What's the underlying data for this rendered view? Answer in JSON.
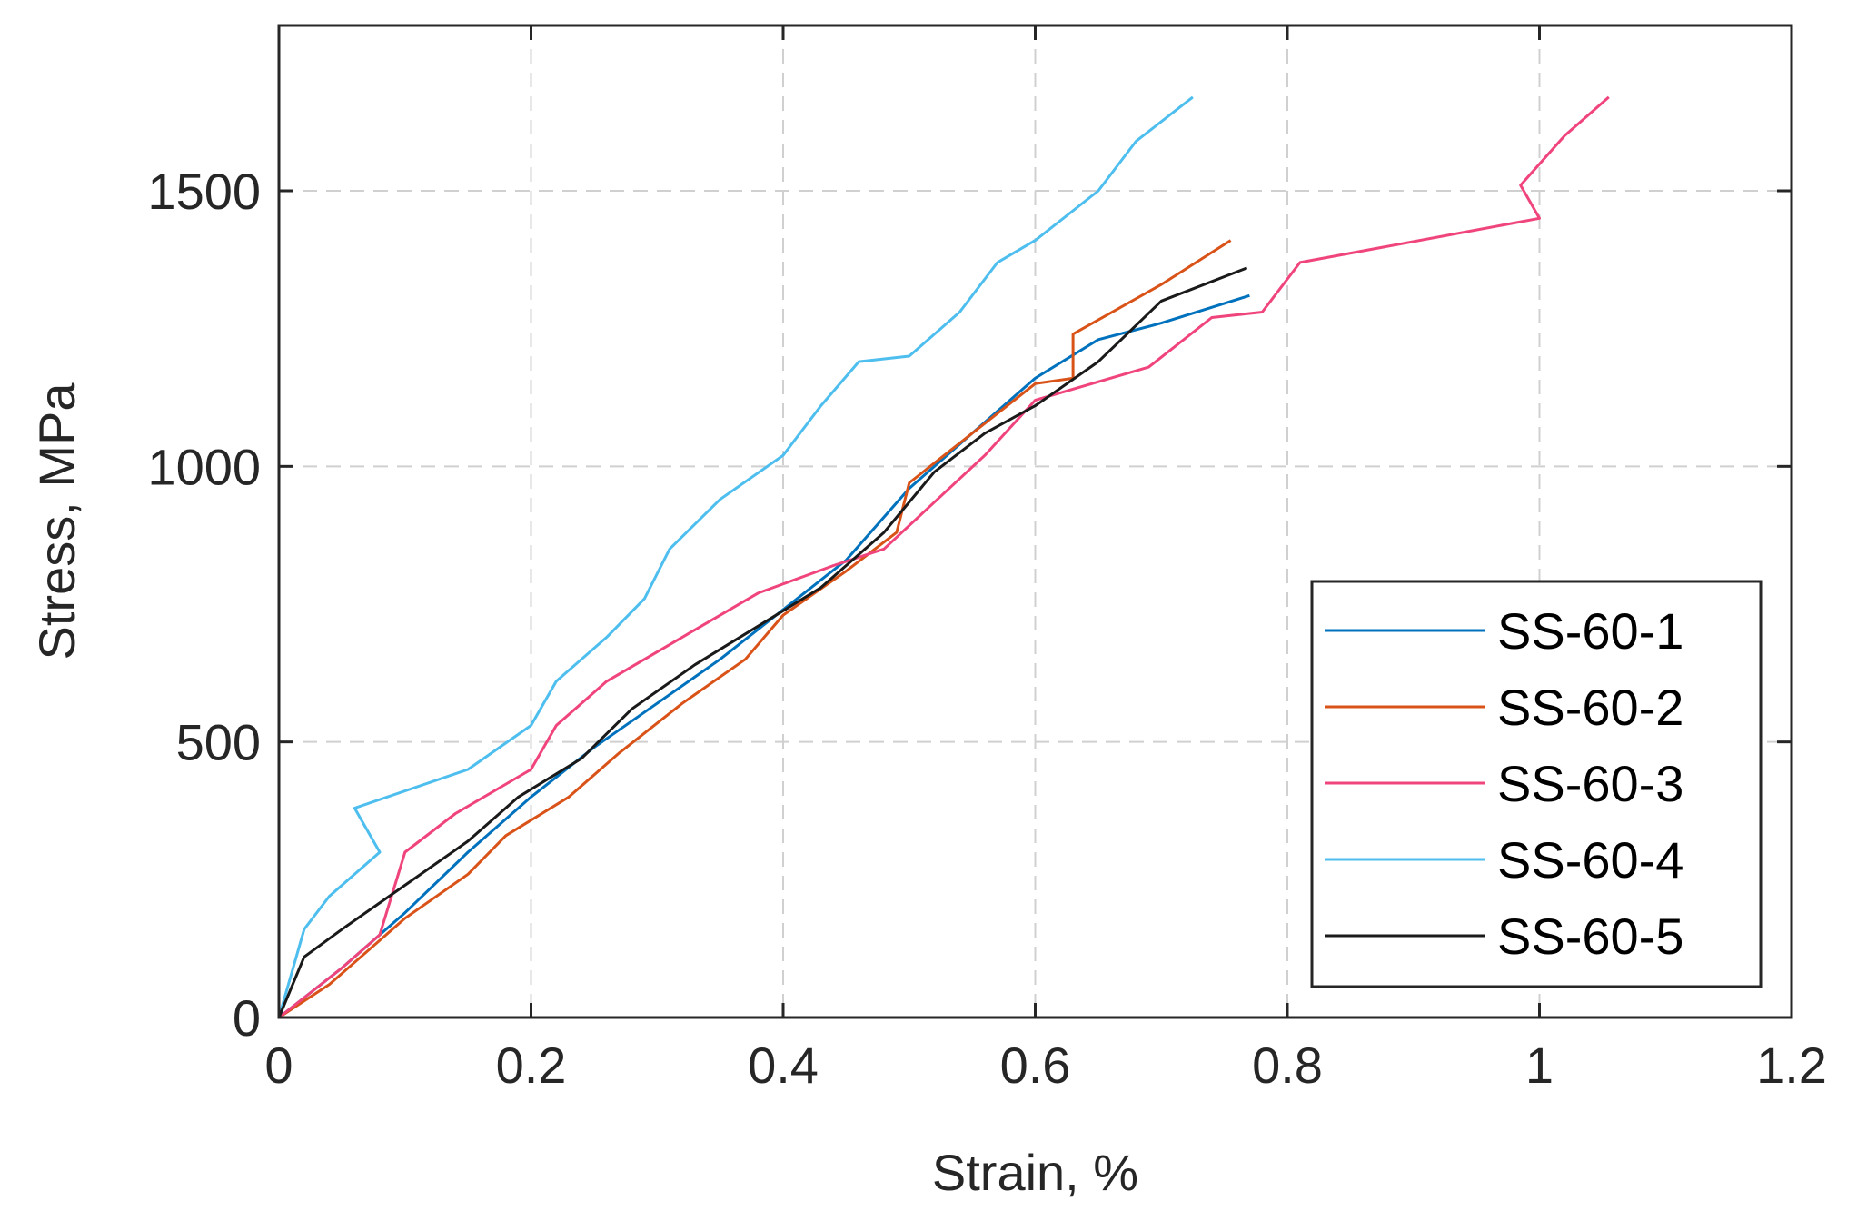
{
  "chart_data": {
    "type": "line",
    "title": "",
    "xlabel": "Strain, %",
    "ylabel": "Stress, MPa",
    "xlim": [
      0,
      1.2
    ],
    "ylim": [
      0,
      1800
    ],
    "xticks": [
      0,
      0.2,
      0.4,
      0.6,
      0.8,
      1,
      1.2
    ],
    "xtick_labels": [
      "0",
      "0.2",
      "0.4",
      "0.6",
      "0.8",
      "1",
      "1.2"
    ],
    "yticks": [
      0,
      500,
      1000,
      1500
    ],
    "ytick_labels": [
      "0",
      "500",
      "1000",
      "1500"
    ],
    "grid": true,
    "legend_position": "bottom-right",
    "series": [
      {
        "name": "SS-60-1",
        "color": "#0072BD",
        "x": [
          0,
          0.05,
          0.1,
          0.15,
          0.2,
          0.25,
          0.3,
          0.35,
          0.4,
          0.45,
          0.5,
          0.55,
          0.6,
          0.65,
          0.7,
          0.77
        ],
        "y": [
          0,
          90,
          190,
          300,
          400,
          490,
          570,
          650,
          740,
          830,
          960,
          1060,
          1160,
          1230,
          1260,
          1310
        ]
      },
      {
        "name": "SS-60-2",
        "color": "#D95319",
        "x": [
          0,
          0.04,
          0.1,
          0.15,
          0.18,
          0.23,
          0.27,
          0.32,
          0.37,
          0.4,
          0.45,
          0.49,
          0.5,
          0.55,
          0.6,
          0.63,
          0.63,
          0.7,
          0.755
        ],
        "y": [
          0,
          60,
          180,
          260,
          330,
          400,
          480,
          570,
          650,
          730,
          810,
          880,
          970,
          1060,
          1150,
          1160,
          1240,
          1330,
          1410
        ]
      },
      {
        "name": "SS-60-3",
        "color": "#F0447C",
        "x": [
          0,
          0.05,
          0.08,
          0.1,
          0.14,
          0.2,
          0.22,
          0.26,
          0.32,
          0.38,
          0.44,
          0.48,
          0.56,
          0.6,
          0.69,
          0.74,
          0.78,
          0.81,
          1.0,
          0.985,
          1.02,
          1.055
        ],
        "y": [
          0,
          90,
          150,
          300,
          370,
          450,
          530,
          610,
          690,
          770,
          820,
          850,
          1020,
          1120,
          1180,
          1270,
          1280,
          1370,
          1450,
          1510,
          1600,
          1670
        ]
      },
      {
        "name": "SS-60-4",
        "color": "#4DBEEE",
        "x": [
          0,
          0.02,
          0.04,
          0.08,
          0.06,
          0.15,
          0.2,
          0.22,
          0.26,
          0.29,
          0.31,
          0.35,
          0.4,
          0.43,
          0.46,
          0.5,
          0.54,
          0.57,
          0.6,
          0.65,
          0.68,
          0.725
        ],
        "y": [
          0,
          160,
          220,
          300,
          380,
          450,
          530,
          610,
          690,
          760,
          850,
          940,
          1020,
          1110,
          1190,
          1200,
          1280,
          1370,
          1410,
          1500,
          1590,
          1670
        ]
      },
      {
        "name": "SS-60-5",
        "color": "#1A1A1A",
        "x": [
          0,
          0.02,
          0.05,
          0.1,
          0.15,
          0.19,
          0.24,
          0.28,
          0.33,
          0.38,
          0.43,
          0.48,
          0.52,
          0.56,
          0.6,
          0.65,
          0.7,
          0.768
        ],
        "y": [
          0,
          110,
          160,
          240,
          320,
          400,
          470,
          560,
          640,
          710,
          780,
          880,
          990,
          1060,
          1110,
          1190,
          1300,
          1360
        ]
      }
    ]
  }
}
